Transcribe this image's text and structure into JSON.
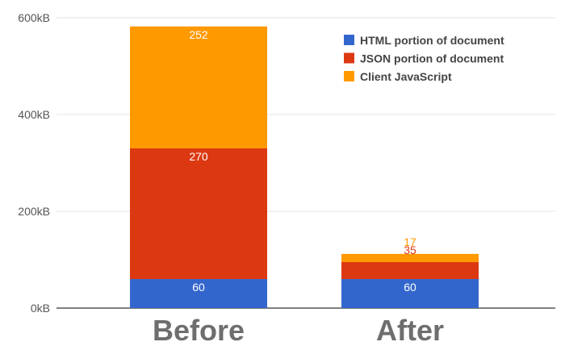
{
  "chart_data": {
    "type": "bar",
    "stacked": true,
    "categories": [
      "Before",
      "After"
    ],
    "series": [
      {
        "name": "HTML portion of document",
        "values": [
          60,
          60
        ],
        "color": "#3366cc",
        "label_color": "#ffffff"
      },
      {
        "name": "JSON portion of document",
        "values": [
          270,
          35
        ],
        "color": "#dc3912",
        "label_color": "#ffffff"
      },
      {
        "name": "Client JavaScript",
        "values": [
          252,
          17
        ],
        "color": "#ff9900",
        "label_color_inside": "#ffffff",
        "label_color_outside": "#ff9900"
      }
    ],
    "yticks": [
      "0kB",
      "200kB",
      "400kB",
      "600kB"
    ],
    "ytick_values": [
      0,
      200,
      400,
      600
    ],
    "ylim": [
      0,
      600
    ],
    "unit": "kB",
    "grid": true,
    "legend_position": "top-right"
  }
}
